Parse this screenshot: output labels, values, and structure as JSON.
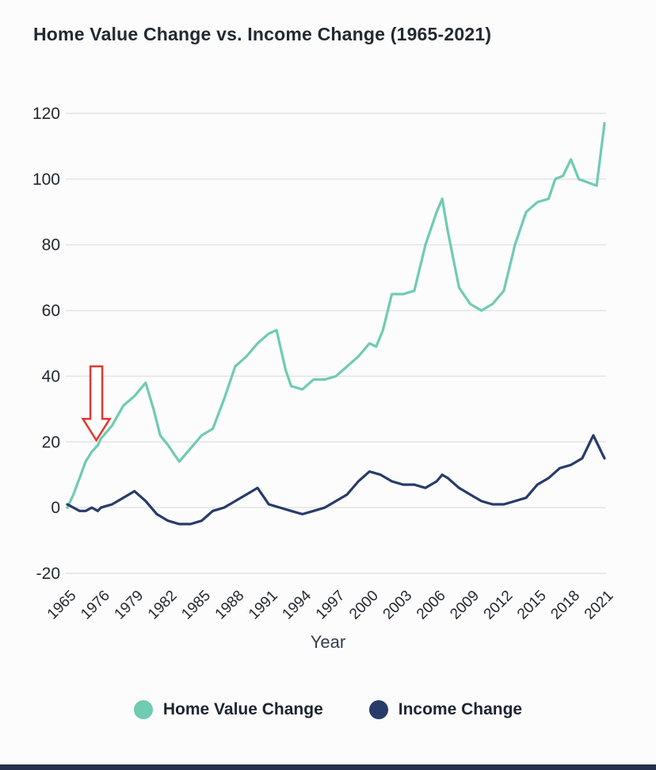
{
  "page": {
    "title": "Home Value Change vs. Income Change (1965-2021)"
  },
  "chart_data": {
    "type": "line",
    "title": "Home Value Change vs. Income Change (1965-2021)",
    "xlabel": "Year",
    "ylabel": "",
    "ylim": [
      -20,
      120
    ],
    "y_ticks": [
      120,
      100,
      80,
      60,
      40,
      20,
      0,
      -20
    ],
    "x_tick_labels": [
      "1965",
      "1976",
      "1979",
      "1982",
      "1985",
      "1988",
      "1991",
      "1994",
      "1997",
      "2000",
      "2003",
      "2006",
      "2009",
      "2012",
      "2015",
      "2018",
      "2021"
    ],
    "grid": "horizontal",
    "legend_position": "bottom",
    "series": [
      {
        "name": "Home Value Change",
        "color": "#6fcbb2",
        "points": [
          [
            1965,
            0
          ],
          [
            1967,
            4
          ],
          [
            1969,
            9
          ],
          [
            1971,
            14
          ],
          [
            1973,
            17
          ],
          [
            1975,
            19
          ],
          [
            1976,
            21
          ],
          [
            1977,
            25
          ],
          [
            1978,
            31
          ],
          [
            1979,
            34
          ],
          [
            1980,
            38
          ],
          [
            1980.7,
            30
          ],
          [
            1981.3,
            22
          ],
          [
            1982,
            19
          ],
          [
            1983,
            14
          ],
          [
            1984,
            18
          ],
          [
            1985,
            22
          ],
          [
            1986,
            24
          ],
          [
            1987,
            33
          ],
          [
            1988,
            43
          ],
          [
            1989,
            46
          ],
          [
            1990,
            50
          ],
          [
            1991,
            53
          ],
          [
            1991.7,
            54
          ],
          [
            1992.5,
            42
          ],
          [
            1993,
            37
          ],
          [
            1994,
            36
          ],
          [
            1995,
            39
          ],
          [
            1996,
            39
          ],
          [
            1997,
            40
          ],
          [
            1998,
            43
          ],
          [
            1999,
            46
          ],
          [
            2000,
            50
          ],
          [
            2000.6,
            49
          ],
          [
            2001.2,
            54
          ],
          [
            2002,
            65
          ],
          [
            2003,
            65
          ],
          [
            2004,
            66
          ],
          [
            2005,
            80
          ],
          [
            2006,
            90
          ],
          [
            2006.5,
            94
          ],
          [
            2007,
            84
          ],
          [
            2008,
            67
          ],
          [
            2009,
            62
          ],
          [
            2010,
            60
          ],
          [
            2011,
            62
          ],
          [
            2012,
            66
          ],
          [
            2013,
            80
          ],
          [
            2014,
            90
          ],
          [
            2015,
            93
          ],
          [
            2016,
            94
          ],
          [
            2016.6,
            100
          ],
          [
            2017.3,
            101
          ],
          [
            2018,
            106
          ],
          [
            2018.7,
            100
          ],
          [
            2019.5,
            99
          ],
          [
            2020.3,
            98
          ],
          [
            2021,
            117
          ]
        ]
      },
      {
        "name": "Income Change",
        "color": "#283b69",
        "points": [
          [
            1965,
            1
          ],
          [
            1967,
            0
          ],
          [
            1969,
            -1
          ],
          [
            1971,
            -1
          ],
          [
            1973,
            0
          ],
          [
            1975,
            -1
          ],
          [
            1976,
            0
          ],
          [
            1977,
            1
          ],
          [
            1978,
            3
          ],
          [
            1979,
            5
          ],
          [
            1980,
            2
          ],
          [
            1981,
            -2
          ],
          [
            1982,
            -4
          ],
          [
            1983,
            -5
          ],
          [
            1984,
            -5
          ],
          [
            1985,
            -4
          ],
          [
            1986,
            -1
          ],
          [
            1987,
            0
          ],
          [
            1988,
            2
          ],
          [
            1989,
            4
          ],
          [
            1990,
            6
          ],
          [
            1991,
            1
          ],
          [
            1992,
            0
          ],
          [
            1993,
            -1
          ],
          [
            1994,
            -2
          ],
          [
            1995,
            -1
          ],
          [
            1996,
            0
          ],
          [
            1997,
            2
          ],
          [
            1998,
            4
          ],
          [
            1999,
            8
          ],
          [
            2000,
            11
          ],
          [
            2001,
            10
          ],
          [
            2002,
            8
          ],
          [
            2003,
            7
          ],
          [
            2004,
            7
          ],
          [
            2005,
            6
          ],
          [
            2006,
            8
          ],
          [
            2006.5,
            10
          ],
          [
            2007,
            9
          ],
          [
            2008,
            6
          ],
          [
            2009,
            4
          ],
          [
            2010,
            2
          ],
          [
            2011,
            1
          ],
          [
            2012,
            1
          ],
          [
            2013,
            2
          ],
          [
            2014,
            3
          ],
          [
            2015,
            7
          ],
          [
            2016,
            9
          ],
          [
            2017,
            12
          ],
          [
            2018,
            13
          ],
          [
            2019,
            15
          ],
          [
            2020,
            22
          ],
          [
            2021,
            15
          ]
        ]
      }
    ],
    "annotations": [
      {
        "type": "down-arrow",
        "color": "#e0392e",
        "year": 1974.5,
        "value_top": 43,
        "value_tip": 20.5
      }
    ]
  },
  "colors": {
    "background": "#fcfcfd",
    "grid": "#e3e4e6",
    "footer_bar": "#24304d",
    "home_value_line": "#6fcbb2",
    "income_line": "#283b69",
    "arrow_annotation": "#e0392e"
  }
}
